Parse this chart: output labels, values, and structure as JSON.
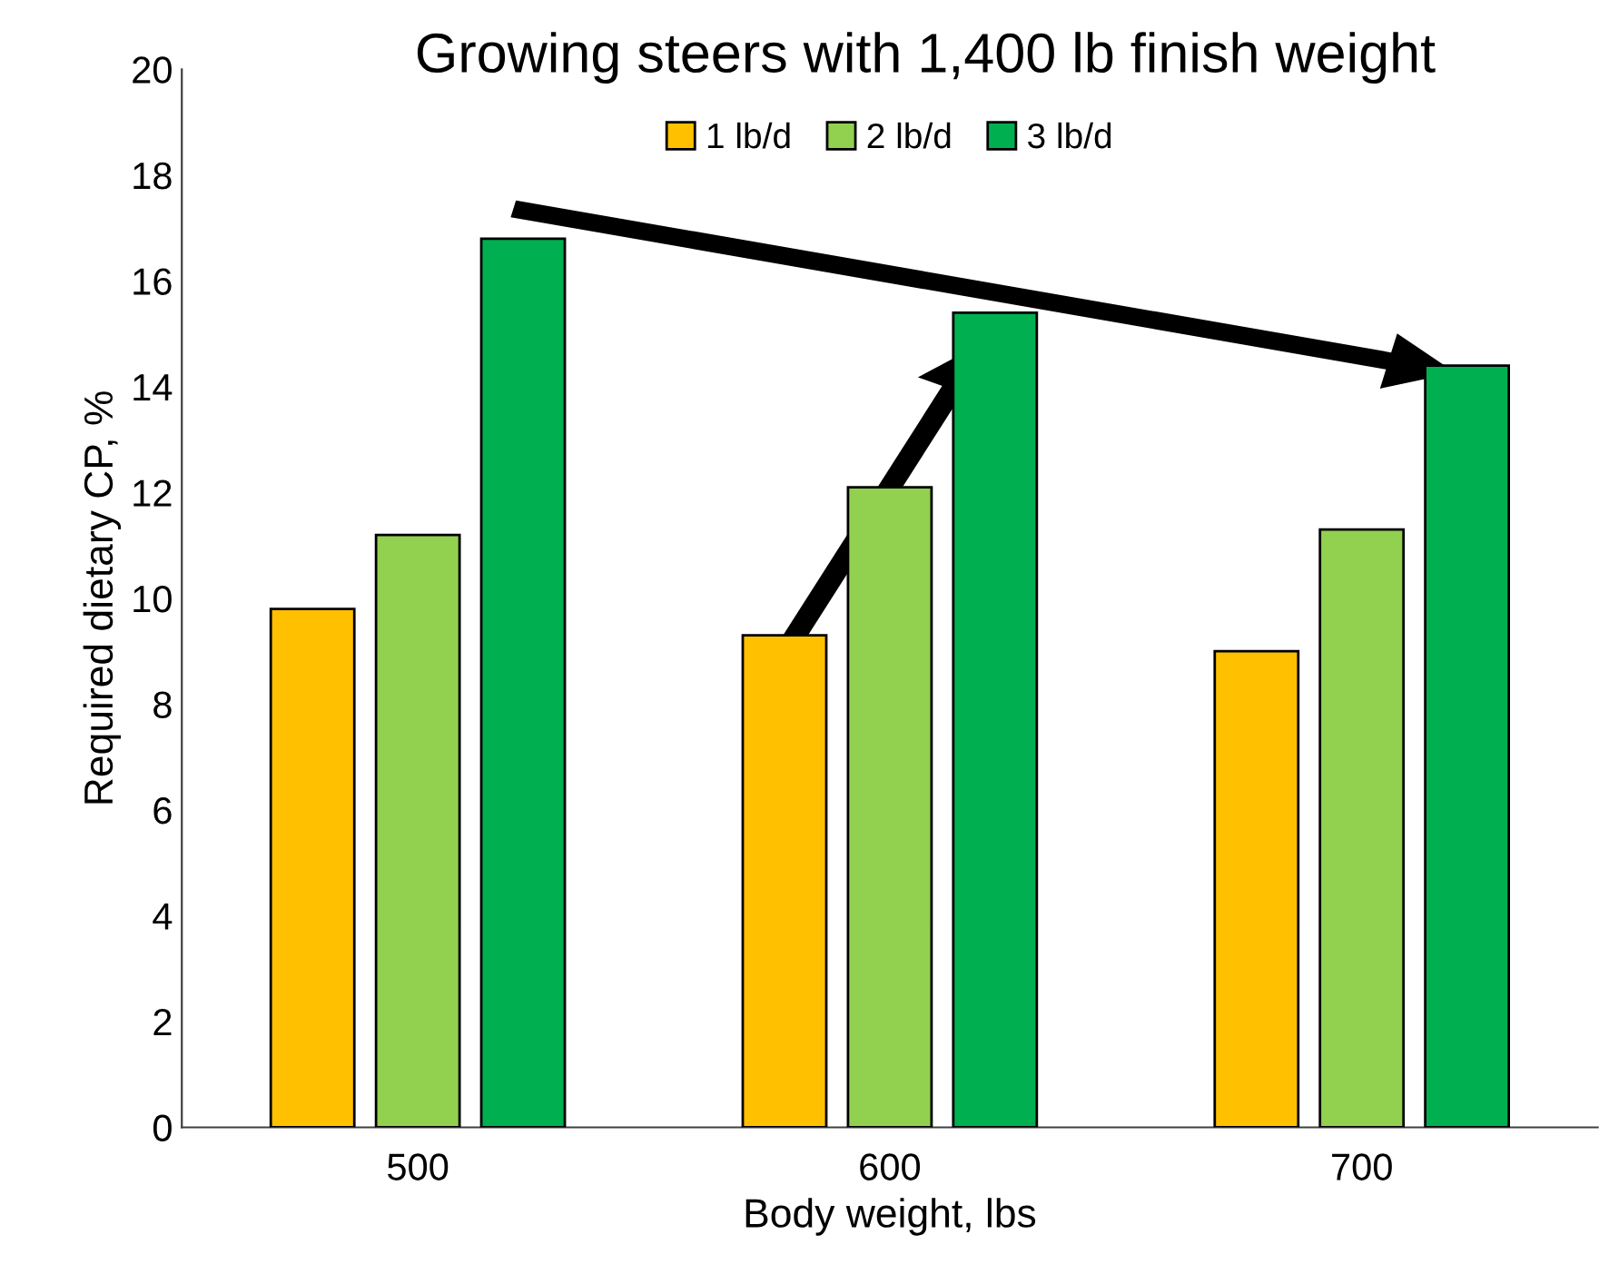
{
  "chart_data": {
    "type": "bar",
    "title": "Growing steers with 1,400 lb finish weight",
    "xlabel": "Body weight, lbs",
    "ylabel": "Required dietary CP, %",
    "categories": [
      "500",
      "600",
      "700"
    ],
    "series": [
      {
        "name": "1 lb/d",
        "color": "#ffc000",
        "values": [
          9.8,
          9.3,
          9.0
        ]
      },
      {
        "name": "2 lb/d",
        "color": "#92d050",
        "values": [
          11.2,
          12.1,
          11.3
        ]
      },
      {
        "name": "3 lb/d",
        "color": "#00b050",
        "values": [
          16.8,
          15.4,
          14.4
        ]
      }
    ],
    "ylim": [
      0,
      20
    ],
    "yticks": [
      0,
      2,
      4,
      6,
      8,
      10,
      12,
      14,
      16,
      18,
      20
    ],
    "grid": false,
    "legend": "top"
  }
}
